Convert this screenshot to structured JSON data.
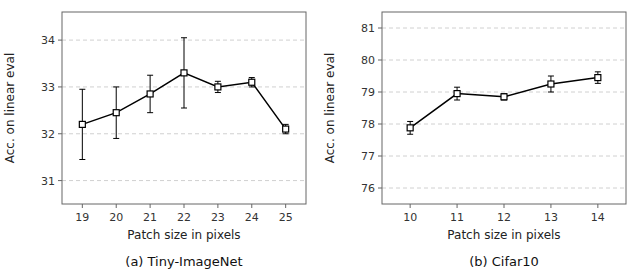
{
  "chart_data": [
    {
      "type": "line",
      "title": "(a) Tiny-ImageNet",
      "x_label": "Patch size in pixels",
      "y_label": "Acc. on linear eval",
      "x": [
        19,
        20,
        21,
        22,
        23,
        24,
        25
      ],
      "series": [
        {
          "color": "black",
          "marker": "square",
          "values": [
            32.2,
            32.45,
            32.85,
            33.3,
            33.0,
            33.1,
            32.1
          ],
          "errors": [
            0.75,
            0.55,
            0.4,
            0.75,
            0.12,
            0.1,
            0.1
          ]
        }
      ],
      "xlim": [
        18.4,
        25.6
      ],
      "xticks": [
        19,
        20,
        21,
        22,
        23,
        24,
        25
      ],
      "ylim": [
        30.5,
        34.6
      ],
      "yticks": [
        31,
        32,
        33,
        34
      ],
      "grid": "y"
    },
    {
      "type": "line",
      "title": "(b) Cifar10",
      "x_label": "Patch size in pixels",
      "y_label": "Acc. on linear eval",
      "x": [
        10,
        11,
        12,
        13,
        14
      ],
      "series": [
        {
          "color": "black",
          "marker": "square",
          "values": [
            77.88,
            78.95,
            78.85,
            79.25,
            79.45
          ],
          "errors": [
            0.2,
            0.2,
            0.1,
            0.25,
            0.18
          ]
        }
      ],
      "xlim": [
        9.4,
        14.6
      ],
      "xticks": [
        10,
        11,
        12,
        13,
        14
      ],
      "ylim": [
        75.5,
        81.5
      ],
      "yticks": [
        76,
        77,
        78,
        79,
        80,
        81
      ],
      "grid": "y"
    }
  ]
}
